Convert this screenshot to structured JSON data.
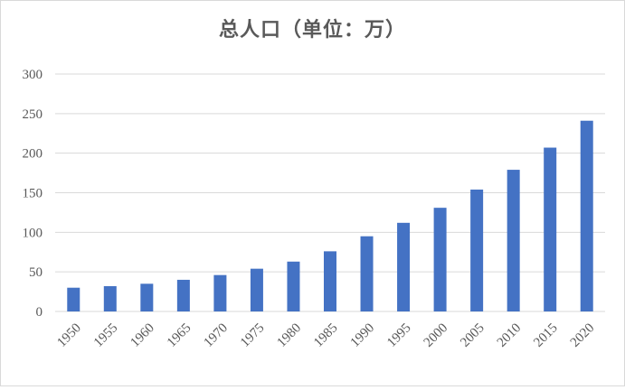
{
  "chart_data": {
    "type": "bar",
    "title": "总人口（单位：万）",
    "xlabel": "",
    "ylabel": "",
    "categories": [
      "1950",
      "1955",
      "1960",
      "1965",
      "1970",
      "1975",
      "1980",
      "1985",
      "1990",
      "1995",
      "2000",
      "2005",
      "2010",
      "2015",
      "2020"
    ],
    "values": [
      30,
      32,
      35,
      40,
      46,
      54,
      63,
      76,
      95,
      112,
      131,
      154,
      179,
      207,
      241
    ],
    "ylim": [
      0,
      300
    ],
    "yticks": [
      0,
      50,
      100,
      150,
      200,
      250,
      300
    ],
    "grid": true,
    "legend": "none",
    "bar_color": "#4472c4",
    "grid_color": "#d9d9d9",
    "axis_text_color": "#595959"
  }
}
